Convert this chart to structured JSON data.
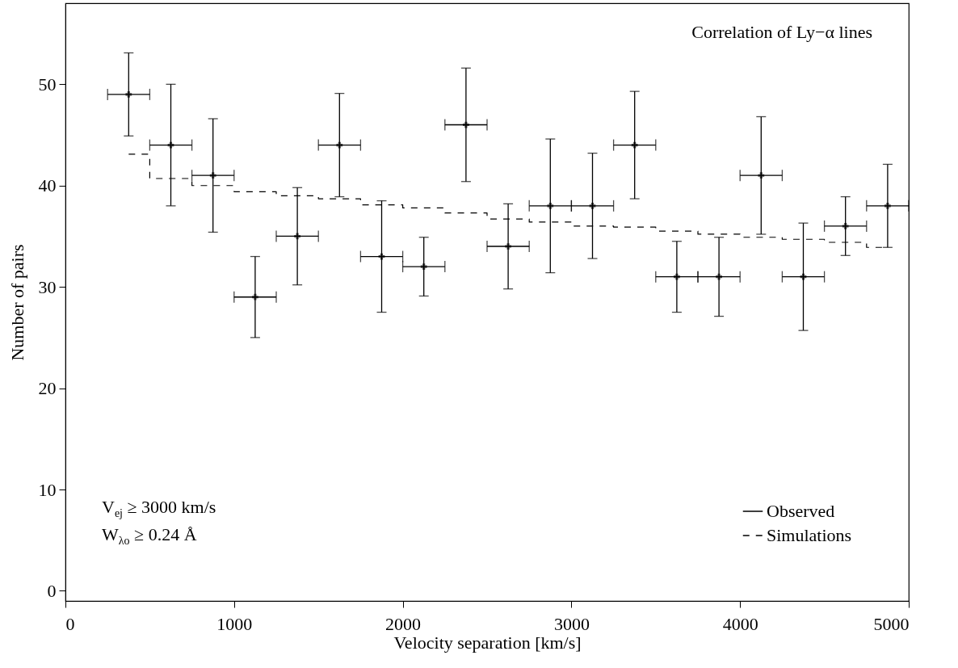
{
  "chart_data": {
    "type": "scatter",
    "xlabel": "Velocity separation [km/s]",
    "ylabel": "Number of pairs",
    "annotations": [
      "Correlation of Ly−α lines",
      "V$_{ej}$ ≥ 3000 km/s",
      "W$_{λo}$ ≥ 0.24 Å"
    ],
    "xlim": [
      0,
      5000
    ],
    "ylim": [
      -1,
      58
    ],
    "xticks": [
      0,
      1000,
      2000,
      3000,
      4000,
      5000
    ],
    "yticks": [
      0,
      10,
      20,
      30,
      40,
      50
    ],
    "grid": false,
    "legend": "bottom right",
    "series": [
      {
        "name": "Observed",
        "type": "scatter",
        "marker": "cross",
        "color": "#000000",
        "x": [
          375,
          625,
          875,
          1125,
          1375,
          1625,
          1875,
          2125,
          2375,
          2625,
          2875,
          3125,
          3375,
          3625,
          3875,
          4125,
          4375,
          4625,
          4875
        ],
        "values": [
          49,
          44,
          41,
          29,
          35,
          44,
          33,
          32,
          46,
          34,
          38,
          38,
          44,
          31,
          31,
          41,
          31,
          36,
          38
        ],
        "errors": [
          4.1,
          6,
          5.6,
          4,
          4.8,
          5.1,
          5.5,
          2.9,
          5.6,
          4.2,
          6.6,
          5.2,
          5.3,
          3.5,
          3.9,
          5.8,
          5.3,
          2.9,
          4.1
        ],
        "xerrors": [
          125,
          125,
          125,
          125,
          125,
          125,
          125,
          125,
          125,
          125,
          125,
          125,
          125,
          125,
          125,
          125,
          125,
          125,
          125
        ]
      },
      {
        "name": "Simulations",
        "type": "step",
        "color": "#000000",
        "line_style": "dashed",
        "x": [
          375,
          625,
          875,
          1125,
          1375,
          1625,
          1875,
          2125,
          2375,
          2625,
          2875,
          3125,
          3375,
          3625,
          3875,
          4125,
          4375,
          4625,
          4875
        ],
        "values": [
          43.1,
          40.7,
          40.0,
          39.4,
          39.0,
          38.7,
          38.1,
          37.8,
          37.3,
          36.7,
          36.4,
          36.0,
          35.9,
          35.5,
          35.2,
          34.9,
          34.7,
          34.4,
          33.9
        ]
      }
    ]
  }
}
